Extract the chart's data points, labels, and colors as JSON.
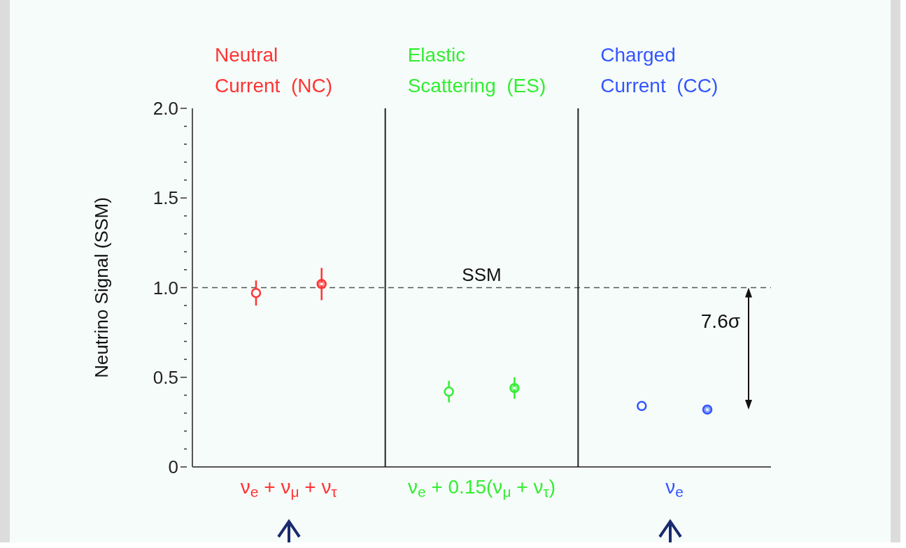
{
  "chart_data": {
    "type": "scatter",
    "ylabel": "Neutrino Signal  (SSM)",
    "categories": [
      "ν$_{e}$ + ν$_{μ}$ + ν$_{τ}$",
      "ν$_{e}$ + 0.15(ν$_{μ}$ + ν$_{τ}$)",
      "ν$_{e}$"
    ],
    "series": [
      {
        "values": [
          0.97,
          0.42,
          0.34
        ],
        "errors": [
          0.07,
          0.06,
          null
        ],
        "colors": [
          "#ff3333",
          "#33ee33",
          "#3355ff"
        ]
      },
      {
        "values": [
          1.02,
          0.44,
          0.32
        ],
        "errors": [
          0.09,
          0.06,
          null
        ],
        "colors": [
          "#ff3333",
          "#33ee33",
          "#3355ff"
        ]
      }
    ],
    "ylim": [
      0,
      2
    ],
    "yticks": [
      0,
      {
        "value": 0.1,
        "label": null
      },
      {
        "value": 0.2,
        "label": null
      },
      {
        "value": 0.3,
        "label": null
      },
      {
        "value": 0.4,
        "label": null
      },
      0.5,
      {
        "value": 0.6,
        "label": null
      },
      {
        "value": 0.7,
        "label": null
      },
      {
        "value": 0.8,
        "label": null
      },
      {
        "value": 0.9,
        "label": null
      },
      {
        "value": 1,
        "label": "1.0"
      },
      {
        "value": 1.1,
        "label": null
      },
      {
        "value": 1.2,
        "label": null
      },
      {
        "value": 1.3,
        "label": null
      },
      {
        "value": 1.4,
        "label": null
      },
      1.5,
      {
        "value": 1.6,
        "label": null
      },
      {
        "value": 1.7,
        "label": null
      },
      {
        "value": 1.8,
        "label": null
      },
      {
        "value": 1.9,
        "label": null
      },
      {
        "value": 2,
        "label": "2.0"
      }
    ],
    "ref_lines": [
      {
        "axis": "y",
        "value": 1,
        "label": "SSM",
        "color": "#555555",
        "line_style": "dashed"
      }
    ],
    "annotations": [
      "Neutral\nCurrent  (NC)",
      "Elastic\nScattering  (ES)",
      "Charged\nCurrent  (CC)",
      "7.6σ"
    ],
    "marker": "circle",
    "grid": false,
    "legend": false
  }
}
